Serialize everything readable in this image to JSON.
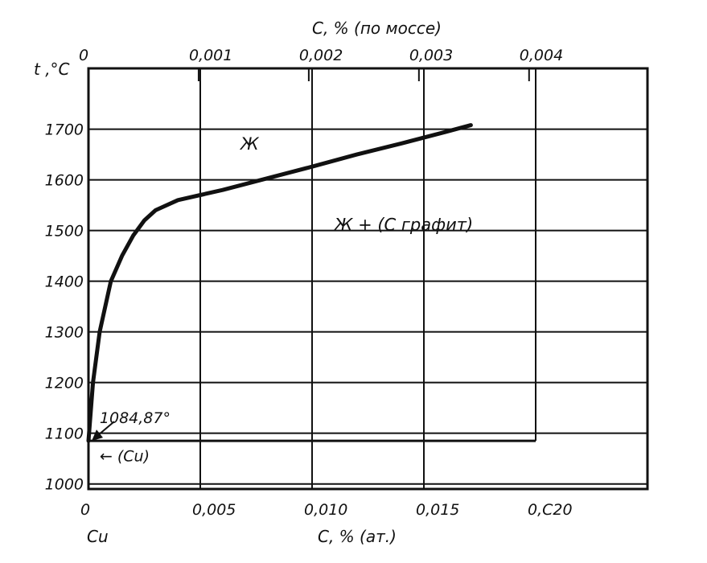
{
  "chart_data": {
    "type": "line",
    "title": "",
    "top_axis": {
      "label": "C, % (по моссе)",
      "ticks": [
        {
          "value": 0,
          "label": "0"
        },
        {
          "value": 0.001,
          "label": "0,001"
        },
        {
          "value": 0.002,
          "label": "0,002"
        },
        {
          "value": 0.003,
          "label": "0,003"
        },
        {
          "value": 0.004,
          "label": "0,004"
        }
      ]
    },
    "xaxis": {
      "label": "C, % (ат.)",
      "origin_label": "Cu",
      "range": [
        0,
        0.025
      ],
      "ticks": [
        {
          "value": 0,
          "label": "0"
        },
        {
          "value": 0.005,
          "label": "0,005"
        },
        {
          "value": 0.01,
          "label": "0,010"
        },
        {
          "value": 0.015,
          "label": "0,015"
        },
        {
          "value": 0.02,
          "label": "0,C20"
        }
      ]
    },
    "yaxis": {
      "label": "t ,°C",
      "range": [
        990,
        1820
      ],
      "ticks": [
        {
          "value": 1000,
          "label": "1000"
        },
        {
          "value": 1100,
          "label": "1100"
        },
        {
          "value": 1200,
          "label": "1200"
        },
        {
          "value": 1300,
          "label": "1300"
        },
        {
          "value": 1400,
          "label": "1400"
        },
        {
          "value": 1500,
          "label": "1500"
        },
        {
          "value": 1600,
          "label": "1600"
        },
        {
          "value": 1700,
          "label": "1700"
        }
      ]
    },
    "grid": true,
    "series": [
      {
        "x": [
          0,
          0.0002,
          0.0005,
          0.001,
          0.0015,
          0.002,
          0.0025,
          0.003,
          0.004,
          0.005,
          0.006,
          0.008,
          0.01,
          0.012,
          0.014,
          0.016,
          0.0171
        ],
        "y": [
          1085,
          1200,
          1300,
          1400,
          1450,
          1490,
          1520,
          1540,
          1560,
          1570,
          1580,
          1603,
          1626,
          1650,
          1672,
          1695,
          1708
        ]
      }
    ],
    "eutectic_line": {
      "temperature": 1085,
      "x_range": [
        0,
        0.02
      ]
    },
    "annotations": [
      {
        "text": "Ж",
        "x": 0.0068,
        "y": 1660
      },
      {
        "text": "Ж + (С графит)",
        "x": 0.011,
        "y": 1500
      },
      {
        "text": "1084,87°",
        "x": 0.0005,
        "y": 1120
      },
      {
        "text": "← (Cu)",
        "x": 0.0005,
        "y": 1045
      }
    ]
  }
}
